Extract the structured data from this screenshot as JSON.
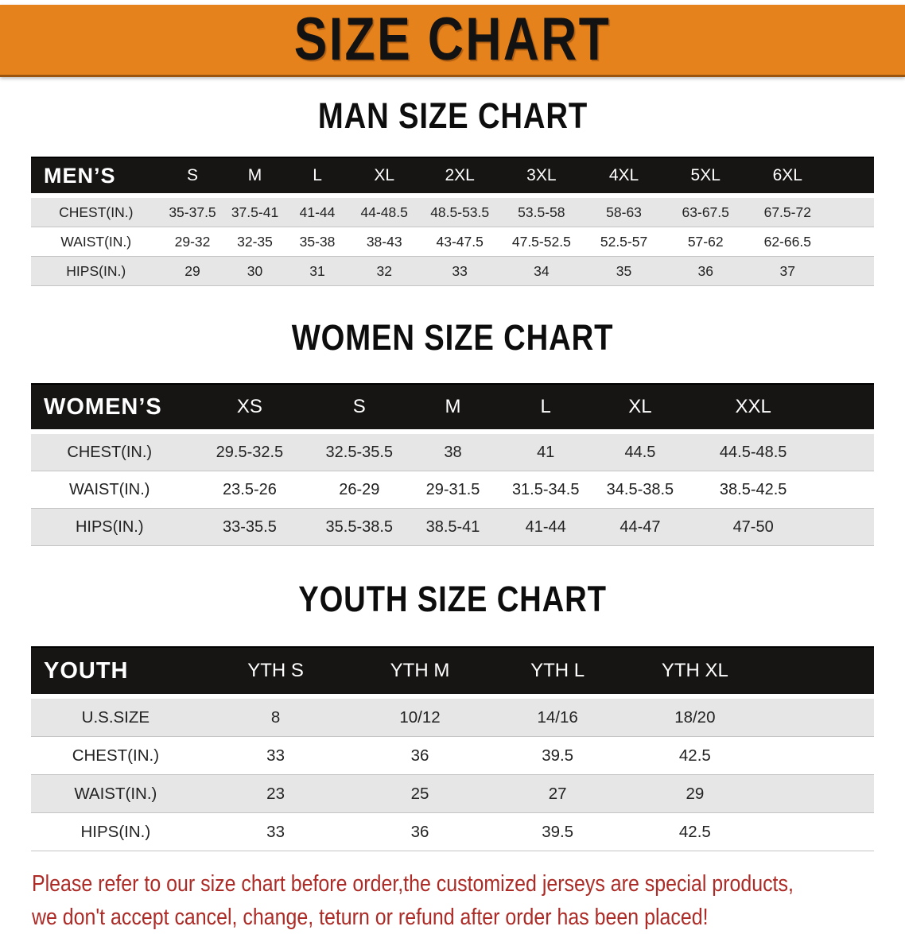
{
  "banner": {
    "title": "SIZE CHART"
  },
  "colors": {
    "banner_orange": "#e5821c",
    "banner_edge": "#9a5410",
    "bar_black": "#171514",
    "stripe_gray": "#e6e6e6",
    "text_dark": "#222222",
    "footer_red": "#ac2b26"
  },
  "men": {
    "heading": "MAN SIZE CHART",
    "table": {
      "corner": "MEN’S",
      "sizes": [
        "S",
        "M",
        "L",
        "XL",
        "2XL",
        "3XL",
        "4XL",
        "5XL",
        "6XL"
      ],
      "rows": [
        {
          "label": "CHEST(IN.)",
          "values": [
            "35-37.5",
            "37.5-41",
            "41-44",
            "44-48.5",
            "48.5-53.5",
            "53.5-58",
            "58-63",
            "63-67.5",
            "67.5-72"
          ]
        },
        {
          "label": "WAIST(IN.)",
          "values": [
            "29-32",
            "32-35",
            "35-38",
            "38-43",
            "43-47.5",
            "47.5-52.5",
            "52.5-57",
            "57-62",
            "62-66.5"
          ]
        },
        {
          "label": "HIPS(IN.)",
          "values": [
            "29",
            "30",
            "31",
            "32",
            "33",
            "34",
            "35",
            "36",
            "37"
          ]
        }
      ]
    }
  },
  "women": {
    "heading": "WOMEN SIZE CHART",
    "table": {
      "corner": "WOMEN’S",
      "sizes": [
        "XS",
        "S",
        "M",
        "L",
        "XL",
        "XXL"
      ],
      "rows": [
        {
          "label": "CHEST(IN.)",
          "values": [
            "29.5-32.5",
            "32.5-35.5",
            "38",
            "41",
            "44.5",
            "44.5-48.5"
          ]
        },
        {
          "label": "WAIST(IN.)",
          "values": [
            "23.5-26",
            "26-29",
            "29-31.5",
            "31.5-34.5",
            "34.5-38.5",
            "38.5-42.5"
          ]
        },
        {
          "label": "HIPS(IN.)",
          "values": [
            "33-35.5",
            "35.5-38.5",
            "38.5-41",
            "41-44",
            "44-47",
            "47-50"
          ]
        }
      ]
    }
  },
  "youth": {
    "heading": "YOUTH SIZE CHART",
    "table": {
      "corner": "YOUTH",
      "sizes": [
        "YTH S",
        "YTH M",
        "YTH L",
        "YTH XL"
      ],
      "rows": [
        {
          "label": "U.S.SIZE",
          "values": [
            "8",
            "10/12",
            "14/16",
            "18/20"
          ]
        },
        {
          "label": "CHEST(IN.)",
          "values": [
            "33",
            "36",
            "39.5",
            "42.5"
          ]
        },
        {
          "label": "WAIST(IN.)",
          "values": [
            "23",
            "25",
            "27",
            "29"
          ]
        },
        {
          "label": "HIPS(IN.)",
          "values": [
            "33",
            "36",
            "39.5",
            "42.5"
          ]
        }
      ]
    }
  },
  "footer": {
    "lines": [
      "Please refer to our size chart before order,the customized jerseys are special products,",
      "we don't accept cancel, change, teturn or refund after order has been placed!"
    ]
  }
}
